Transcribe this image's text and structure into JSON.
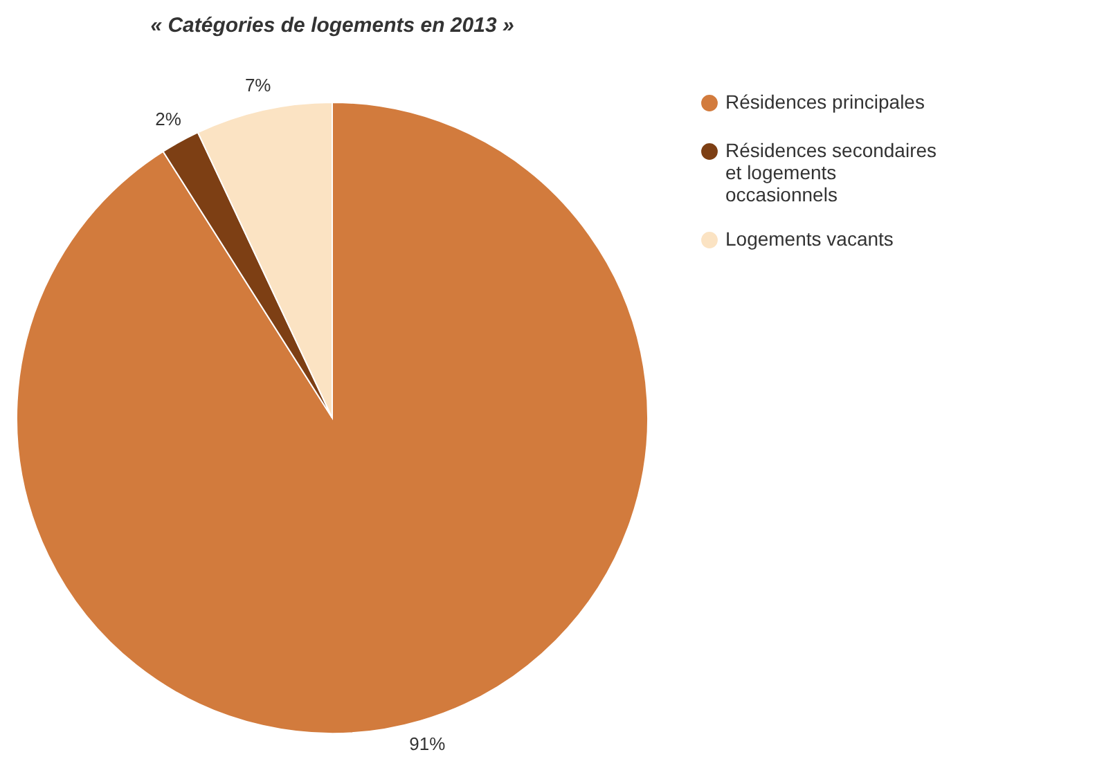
{
  "chart_data": {
    "type": "pie",
    "title": "« Catégories de logements en 2013 »",
    "categories": [
      "Résidences principales",
      "Résidences secondaires et logements occasionnels",
      "Logements vacants"
    ],
    "values": [
      91,
      2,
      7
    ],
    "colors": [
      "#d27b3d",
      "#7d3f14",
      "#fbe3c3"
    ],
    "value_labels": [
      "91%",
      "2%",
      "7%"
    ],
    "legend": "right"
  }
}
